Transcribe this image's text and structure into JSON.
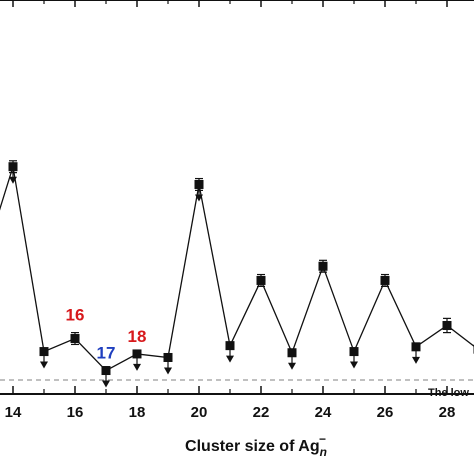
{
  "chart_data": {
    "type": "line",
    "title": "",
    "xlabel": "Cluster size of Ag",
    "xlabel_sub": "n",
    "xlabel_sup": "−",
    "ylabel": "",
    "xlim": [
      13.6,
      29.4
    ],
    "ylim": [
      0,
      100
    ],
    "xticks": [
      14,
      16,
      18,
      20,
      22,
      24,
      26,
      28
    ],
    "grid": false,
    "series": [
      {
        "points": [
          {
            "x": 13,
            "y": 48
          },
          {
            "x": 14,
            "y": 90,
            "err": 2.5,
            "upper_limit": true
          },
          {
            "x": 15,
            "y": 12,
            "err": 0,
            "upper_limit": true
          },
          {
            "x": 16,
            "y": 17.5,
            "err": 2.5,
            "upper_limit": false
          },
          {
            "x": 17,
            "y": 4,
            "err": 0,
            "upper_limit": true
          },
          {
            "x": 18,
            "y": 11,
            "err": 0,
            "upper_limit": true
          },
          {
            "x": 19,
            "y": 9.5,
            "err": 0,
            "upper_limit": true
          },
          {
            "x": 20,
            "y": 82.5,
            "err": 2.5,
            "upper_limit": true
          },
          {
            "x": 21,
            "y": 14.5,
            "err": 0,
            "upper_limit": true
          },
          {
            "x": 22,
            "y": 42,
            "err": 2.5,
            "upper_limit": false
          },
          {
            "x": 23,
            "y": 11.5,
            "err": 0,
            "upper_limit": true
          },
          {
            "x": 24,
            "y": 48,
            "err": 2.5,
            "upper_limit": false
          },
          {
            "x": 25,
            "y": 12,
            "err": 0,
            "upper_limit": true
          },
          {
            "x": 26,
            "y": 42,
            "err": 2.5,
            "upper_limit": false
          },
          {
            "x": 27,
            "y": 14,
            "err": 0,
            "upper_limit": true
          },
          {
            "x": 28,
            "y": 23,
            "err": 3,
            "upper_limit": false
          },
          {
            "x": 29,
            "y": 13
          }
        ]
      }
    ],
    "annotations": [
      {
        "text": "16",
        "x": 16,
        "color": "#d7191c"
      },
      {
        "text": "17",
        "x": 17,
        "color": "#1f3fbf"
      },
      {
        "text": "18",
        "x": 18,
        "color": "#d7191c"
      }
    ],
    "reference_line": {
      "y": 0,
      "label": "The low"
    }
  }
}
